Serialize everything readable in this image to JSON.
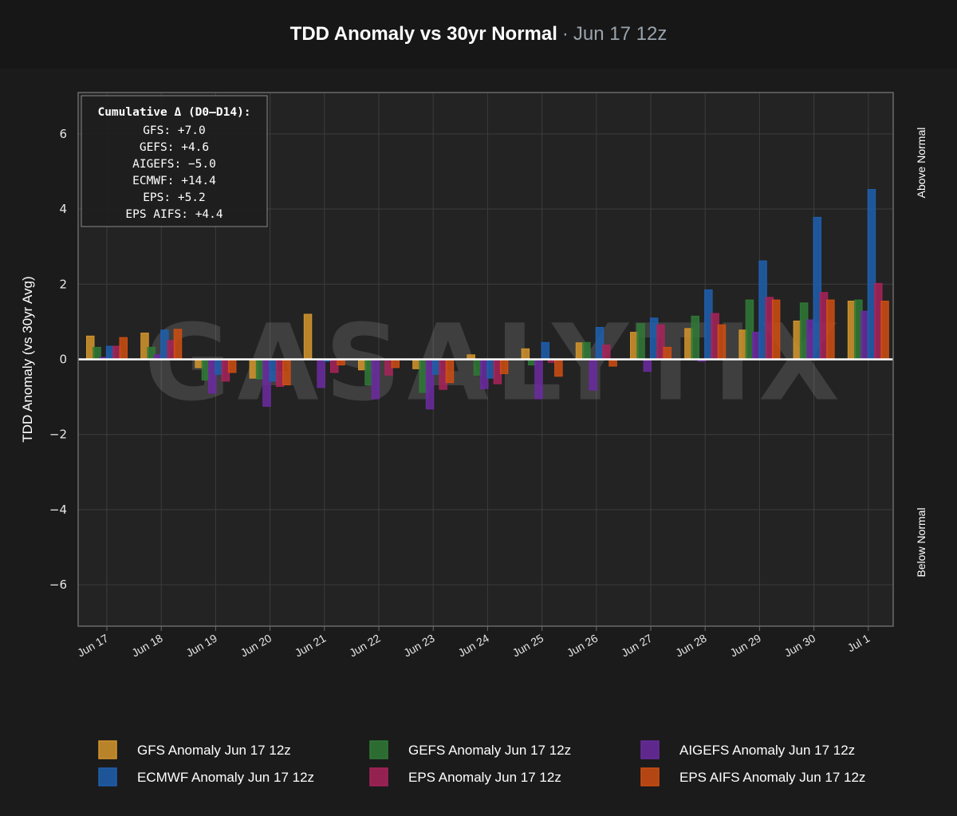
{
  "header": {
    "title": "TDD Anomaly vs 30yr Normal",
    "separator": "·",
    "subtitle": "Jun 17 12z"
  },
  "chart_data": {
    "type": "bar",
    "title": "TDD Anomaly vs 30yr Normal",
    "subtitle": "Jun 17 12z",
    "ylabel": "TDD Anomaly (vs 30yr Avg)",
    "ylim": [
      -7.1,
      7.1
    ],
    "yticks": [
      6,
      4,
      2,
      0,
      -2,
      -4,
      -6
    ],
    "ytick_labels": [
      "6",
      "4",
      "2",
      "0",
      "−2",
      "−4",
      "−6"
    ],
    "right_labels": {
      "above": "Above Normal",
      "below": "Below Normal"
    },
    "grid": true,
    "watermark": "GASALYTIX",
    "categories": [
      "Jun 17",
      "Jun 18",
      "Jun 19",
      "Jun 20",
      "Jun 21",
      "Jun 22",
      "Jun 23",
      "Jun 24",
      "Jun 25",
      "Jun 26",
      "Jun 27",
      "Jun 28",
      "Jun 29",
      "Jun 30",
      "Jul 1"
    ],
    "series": [
      {
        "name": "GFS Anomaly Jun 17 12z",
        "color": "#d4952c",
        "values": [
          0.62,
          0.7,
          -0.22,
          -0.5,
          1.2,
          -0.28,
          -0.25,
          0.12,
          0.28,
          0.44,
          0.72,
          0.82,
          0.78,
          1.02,
          1.55
        ]
      },
      {
        "name": "GEFS Anomaly Jun 17 12z",
        "color": "#2f7a36",
        "values": [
          0.32,
          0.32,
          -0.55,
          -0.52,
          0.0,
          -0.68,
          -0.88,
          -0.42,
          -0.15,
          0.45,
          0.95,
          1.15,
          1.58,
          1.5,
          1.58
        ]
      },
      {
        "name": "AIGEFS Anomaly Jun 17 12z",
        "color": "#6b2aa0",
        "values": [
          0.05,
          0.12,
          -0.9,
          -1.25,
          -0.75,
          -1.05,
          -1.32,
          -0.78,
          -1.05,
          -0.82,
          -0.32,
          -0.05,
          0.72,
          1.05,
          1.28
        ]
      },
      {
        "name": "ECMWF Anomaly Jun 17 12z",
        "color": "#1f5fae",
        "values": [
          0.35,
          0.78,
          -0.4,
          -0.58,
          -0.05,
          0.0,
          -0.4,
          -0.5,
          0.45,
          0.85,
          1.1,
          1.85,
          2.62,
          3.78,
          4.52
        ]
      },
      {
        "name": "EPS Anomaly Jun 17 12z",
        "color": "#a8235a",
        "values": [
          0.35,
          0.5,
          -0.58,
          -0.72,
          -0.35,
          -0.42,
          -0.8,
          -0.65,
          -0.08,
          0.38,
          0.92,
          1.22,
          1.65,
          1.78,
          2.02
        ]
      },
      {
        "name": "EPS AIFS Anomaly Jun 17 12z",
        "color": "#cf4e12",
        "values": [
          0.58,
          0.8,
          -0.35,
          -0.68,
          -0.15,
          -0.22,
          -0.62,
          -0.38,
          -0.45,
          -0.18,
          0.32,
          0.92,
          1.58,
          1.58,
          1.55
        ]
      }
    ],
    "draw_order": [
      0,
      1,
      2,
      3,
      4,
      5
    ],
    "legend": {
      "placement": "bottom",
      "rows": [
        [
          0,
          1,
          2
        ],
        [
          3,
          4,
          5
        ]
      ]
    },
    "annotation": {
      "heading": "Cumulative Δ (D0–D14):",
      "lines": [
        "GFS: +7.0",
        "GEFS: +4.6",
        "AIGEFS: −5.0",
        "ECMWF: +14.4",
        "EPS: +5.2",
        "EPS AIFS: +4.4"
      ],
      "placement": "top-left"
    }
  },
  "colors": {
    "background": "#1b1b1b",
    "plot_background": "#232323",
    "grid": "#3c3c3c",
    "axis": "#6a6a6a",
    "zero_line": "#ffffff",
    "subtitle": "#9aa3ad"
  }
}
